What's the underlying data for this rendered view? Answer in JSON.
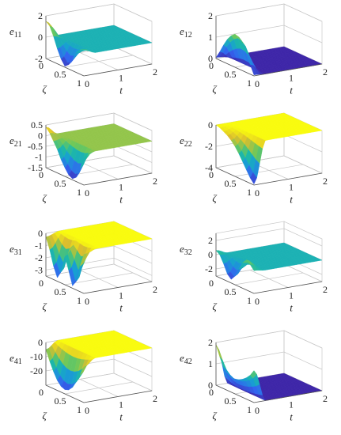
{
  "chart_data": [
    {
      "id": "e11",
      "type": "surface3d",
      "zlabel_base": "e",
      "zlabel_sub": "11",
      "xlabel": "ζ",
      "ylabel": "t",
      "xlim": [
        0,
        1
      ],
      "ylim": [
        0,
        2
      ],
      "zlim": [
        -2,
        2
      ],
      "x_ticks": [
        "0",
        "0.5",
        "1"
      ],
      "y_ticks": [
        "0",
        "1",
        "2"
      ],
      "z_ticks": [
        "2",
        "0",
        "-2"
      ],
      "zt_values": [
        2,
        0,
        -2
      ],
      "settle_t": 0.35,
      "plateau_value": 0.0,
      "initial_profile": [
        1.5,
        1.2,
        0.4,
        -0.6,
        -1.4,
        -1.9,
        -1.6,
        -0.9,
        -0.2,
        0.3,
        0.5
      ]
    },
    {
      "id": "e12",
      "type": "surface3d",
      "zlabel_base": "e",
      "zlabel_sub": "12",
      "xlabel": "ζ",
      "ylabel": "t",
      "xlim": [
        0,
        1
      ],
      "ylim": [
        0,
        2
      ],
      "zlim": [
        0,
        2
      ],
      "x_ticks": [
        "0",
        "0.5",
        "1"
      ],
      "y_ticks": [
        "0",
        "1",
        "2"
      ],
      "z_ticks": [
        "2",
        "1",
        "0"
      ],
      "zt_values": [
        2,
        1,
        0
      ],
      "settle_t": 0.35,
      "plateau_value": 0.0,
      "initial_profile": [
        0.05,
        0.4,
        0.8,
        1.15,
        1.4,
        1.55,
        1.5,
        1.3,
        0.9,
        0.45,
        0.05
      ]
    },
    {
      "id": "e21",
      "type": "surface3d",
      "zlabel_base": "e",
      "zlabel_sub": "21",
      "xlabel": "ζ",
      "ylabel": "t",
      "xlim": [
        0,
        1
      ],
      "ylim": [
        0,
        2
      ],
      "zlim": [
        -1.5,
        0.5
      ],
      "x_ticks": [
        "0",
        "0.5",
        "1"
      ],
      "y_ticks": [
        "0",
        "1",
        "2"
      ],
      "z_ticks": [
        "0.5",
        "0",
        "-0.5",
        "-1",
        "-1.5"
      ],
      "zt_values": [
        0.5,
        0,
        -0.5,
        -1,
        -1.5
      ],
      "settle_t": 0.35,
      "plateau_value": 0.0,
      "initial_profile": [
        0.4,
        0.2,
        -0.1,
        -0.4,
        -0.8,
        -1.1,
        -1.35,
        -1.45,
        -1.3,
        -0.8,
        -0.2
      ]
    },
    {
      "id": "e22",
      "type": "surface3d",
      "zlabel_base": "e",
      "zlabel_sub": "22",
      "xlabel": "ζ",
      "ylabel": "t",
      "xlim": [
        0,
        1
      ],
      "ylim": [
        0,
        2
      ],
      "zlim": [
        -4,
        0
      ],
      "x_ticks": [
        "0",
        "0.5",
        "1"
      ],
      "y_ticks": [
        "0",
        "1",
        "2"
      ],
      "z_ticks": [
        "0",
        "-2",
        "-4"
      ],
      "zt_values": [
        0,
        -2,
        -4
      ],
      "settle_t": 0.35,
      "plateau_value": 0.0,
      "initial_profile": [
        0,
        -0.1,
        -0.3,
        -0.5,
        -0.8,
        -1.2,
        -1.7,
        -2.3,
        -2.9,
        -3.5,
        -3.9
      ]
    },
    {
      "id": "e31",
      "type": "surface3d",
      "zlabel_base": "e",
      "zlabel_sub": "31",
      "xlabel": "ζ",
      "ylabel": "t",
      "xlim": [
        0,
        1
      ],
      "ylim": [
        0,
        2
      ],
      "zlim": [
        -3.5,
        0
      ],
      "x_ticks": [
        "0",
        "0.5",
        "1"
      ],
      "y_ticks": [
        "0",
        "1",
        "2"
      ],
      "z_ticks": [
        "0",
        "-1",
        "-2",
        "-3"
      ],
      "zt_values": [
        0,
        -1,
        -2,
        -3
      ],
      "settle_t": 0.4,
      "plateau_value": 0.0,
      "initial_profile": [
        -0.3,
        -1.2,
        -2.4,
        -3.2,
        -2.6,
        -1.2,
        -2.2,
        -3.3,
        -2.8,
        -1.4,
        -0.3
      ]
    },
    {
      "id": "e32",
      "type": "surface3d",
      "zlabel_base": "e",
      "zlabel_sub": "32",
      "xlabel": "ζ",
      "ylabel": "t",
      "xlim": [
        0,
        1
      ],
      "ylim": [
        0,
        2
      ],
      "zlim": [
        -3,
        3
      ],
      "x_ticks": [
        "0",
        "0.5",
        "1"
      ],
      "y_ticks": [
        "0",
        "1",
        "2"
      ],
      "z_ticks": [
        "2",
        "0",
        "-2"
      ],
      "zt_values": [
        2,
        0,
        -2
      ],
      "settle_t": 0.35,
      "plateau_value": 0.0,
      "initial_profile": [
        0.6,
        0.2,
        -0.8,
        -2.0,
        -2.5,
        -1.8,
        -0.6,
        0.6,
        1.2,
        0.8,
        0.2
      ]
    },
    {
      "id": "e41",
      "type": "surface3d",
      "zlabel_base": "e",
      "zlabel_sub": "41",
      "xlabel": "ζ",
      "ylabel": "t",
      "xlim": [
        0,
        1
      ],
      "ylim": [
        0,
        2
      ],
      "zlim": [
        -30,
        0
      ],
      "x_ticks": [
        "0",
        "0.5",
        "1"
      ],
      "y_ticks": [
        "0",
        "1",
        "2"
      ],
      "z_ticks": [
        "0",
        "-10",
        "-20"
      ],
      "zt_values": [
        0,
        -10,
        -20
      ],
      "settle_t": 0.35,
      "plateau_value": 0.0,
      "initial_profile": [
        -5,
        -12,
        -18,
        -23,
        -26,
        -27,
        -26,
        -23,
        -18,
        -12,
        -5
      ]
    },
    {
      "id": "e42",
      "type": "surface3d",
      "zlabel_base": "e",
      "zlabel_sub": "42",
      "xlabel": "ζ",
      "ylabel": "t",
      "xlim": [
        0,
        1
      ],
      "ylim": [
        0,
        2
      ],
      "zlim": [
        0,
        2
      ],
      "x_ticks": [
        "0",
        "0.5",
        "1"
      ],
      "y_ticks": [
        "0",
        "1",
        "2"
      ],
      "z_ticks": [
        "2",
        "1",
        "0"
      ],
      "zt_values": [
        2,
        1,
        0
      ],
      "settle_t": 0.35,
      "plateau_value": 0.0,
      "initial_profile": [
        1.9,
        1.4,
        1.0,
        0.8,
        0.7,
        0.7,
        0.75,
        0.85,
        1.0,
        1.2,
        1.5
      ]
    }
  ]
}
